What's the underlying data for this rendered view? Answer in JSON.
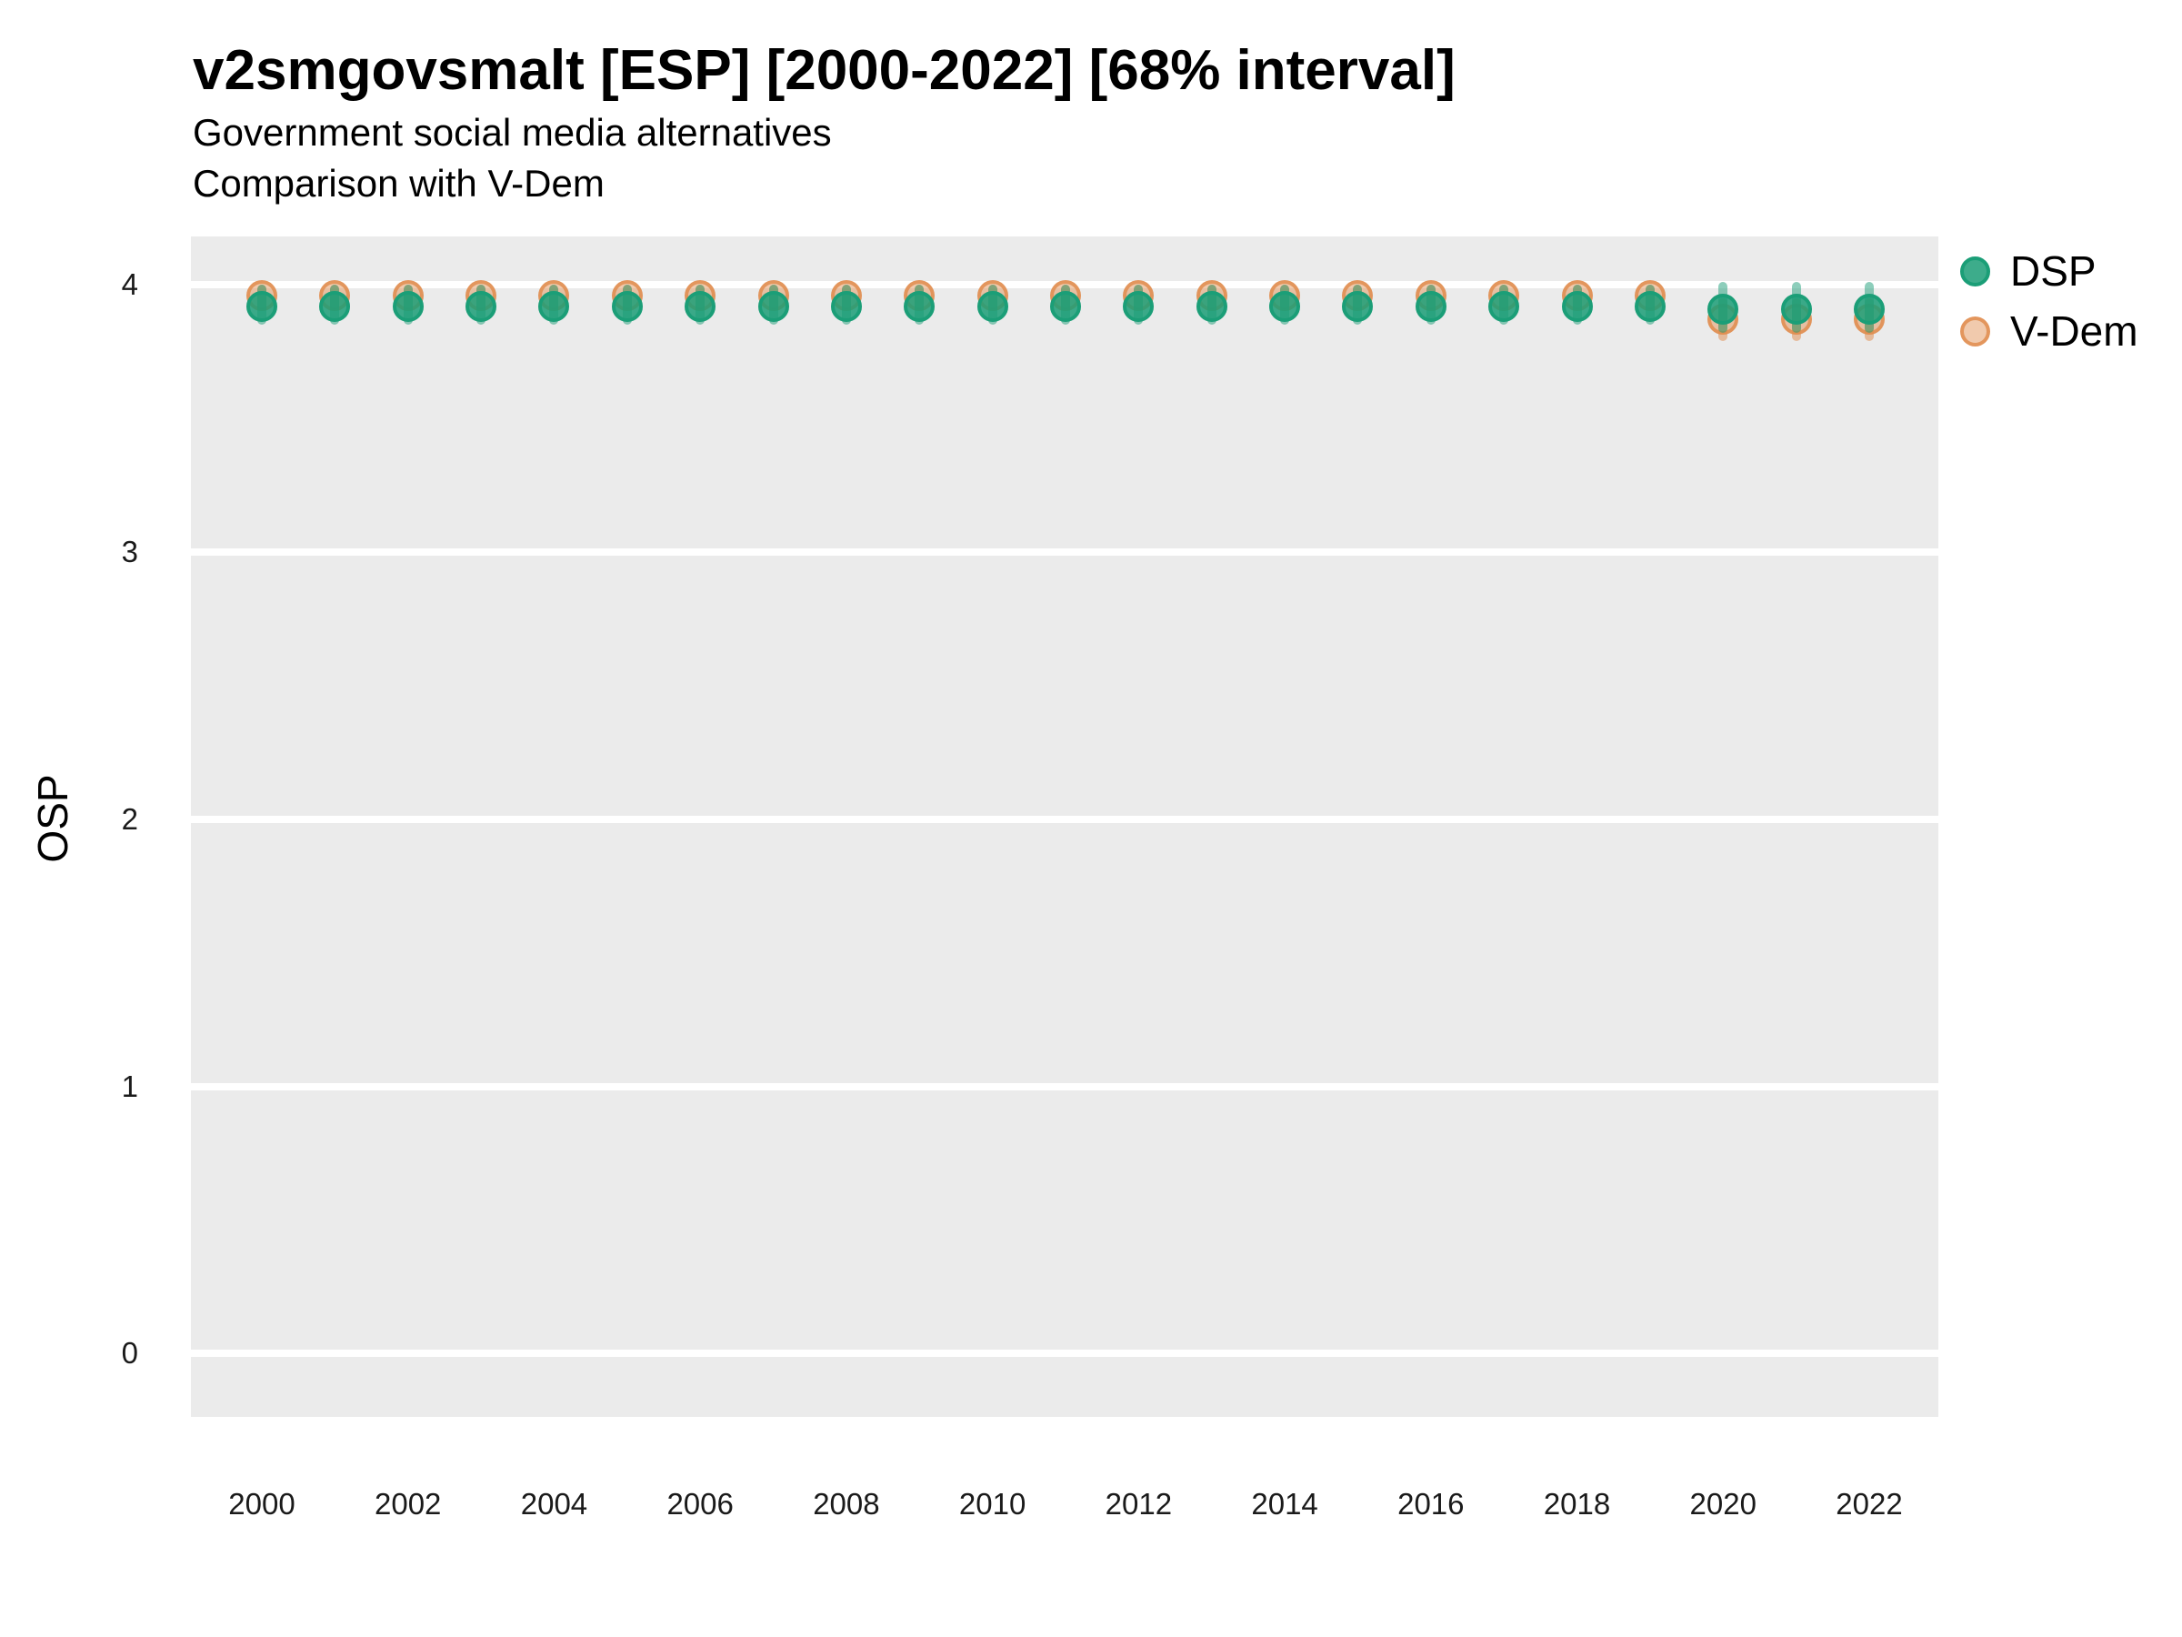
{
  "header": {
    "title": "v2smgovsmalt [ESP] [2000-2022] [68% interval]",
    "subtitle": "Government social media alternatives",
    "subtitle2": "Comparison with V-Dem"
  },
  "axes": {
    "y": {
      "label": "OSP",
      "ticks": [
        4,
        3,
        2,
        1,
        0
      ]
    },
    "x": {
      "ticks": [
        2000,
        2002,
        2004,
        2006,
        2008,
        2010,
        2012,
        2014,
        2016,
        2018,
        2020,
        2022
      ]
    }
  },
  "legend": {
    "items": [
      {
        "label": "DSP",
        "color": "#1B9E77"
      },
      {
        "label": "V-Dem",
        "color": "#E08A4A"
      }
    ]
  },
  "colors": {
    "dsp_green": "#1B9E77",
    "vdem_orange": "#E08A4A",
    "panel_background": "#EBEBEB",
    "gridline": "#FFFFFF"
  },
  "chart_data": {
    "type": "scatter",
    "title": "v2smgovsmalt [ESP] [2000-2022] [68% interval]",
    "subtitle": "Government social media alternatives",
    "comparison_note": "Comparison with V-Dem",
    "xlabel": "",
    "ylabel": "OSP",
    "interval": "68%",
    "grid": "horizontal-major-only",
    "legend_position": "right-top",
    "ylim": [
      -0.24,
      4.18
    ],
    "xlim": [
      1999.0,
      2023.0
    ],
    "y_ticks": [
      0,
      1,
      2,
      3,
      4
    ],
    "x_ticks": [
      2000,
      2002,
      2004,
      2006,
      2008,
      2010,
      2012,
      2014,
      2016,
      2018,
      2020,
      2022
    ],
    "x": [
      2000,
      2001,
      2002,
      2003,
      2004,
      2005,
      2006,
      2007,
      2008,
      2009,
      2010,
      2011,
      2012,
      2013,
      2014,
      2015,
      2016,
      2017,
      2018,
      2019,
      2020,
      2021,
      2022
    ],
    "series": [
      {
        "name": "V-Dem",
        "color": "#E08A4A",
        "values": [
          3.96,
          3.96,
          3.96,
          3.96,
          3.96,
          3.96,
          3.96,
          3.96,
          3.96,
          3.96,
          3.96,
          3.96,
          3.96,
          3.96,
          3.96,
          3.96,
          3.96,
          3.96,
          3.96,
          3.96,
          3.87,
          3.87,
          3.87
        ],
        "lower": [
          3.91,
          3.91,
          3.91,
          3.91,
          3.91,
          3.91,
          3.91,
          3.91,
          3.91,
          3.91,
          3.91,
          3.91,
          3.91,
          3.91,
          3.91,
          3.91,
          3.91,
          3.91,
          3.91,
          3.91,
          3.79,
          3.79,
          3.79
        ],
        "upper": [
          4.0,
          4.0,
          4.0,
          4.0,
          4.0,
          4.0,
          4.0,
          4.0,
          4.0,
          4.0,
          4.0,
          4.0,
          4.0,
          4.0,
          4.0,
          4.0,
          4.0,
          4.0,
          4.0,
          4.0,
          3.95,
          3.95,
          3.95
        ]
      },
      {
        "name": "DSP",
        "color": "#1B9E77",
        "values": [
          3.92,
          3.92,
          3.92,
          3.92,
          3.92,
          3.92,
          3.92,
          3.92,
          3.92,
          3.92,
          3.92,
          3.92,
          3.92,
          3.92,
          3.92,
          3.92,
          3.92,
          3.92,
          3.92,
          3.92,
          3.91,
          3.91,
          3.91
        ],
        "lower": [
          3.85,
          3.85,
          3.85,
          3.85,
          3.85,
          3.85,
          3.85,
          3.85,
          3.85,
          3.85,
          3.85,
          3.85,
          3.85,
          3.85,
          3.85,
          3.85,
          3.85,
          3.85,
          3.85,
          3.85,
          3.82,
          3.82,
          3.82
        ],
        "upper": [
          4.0,
          4.0,
          4.0,
          4.0,
          4.0,
          4.0,
          4.0,
          4.0,
          4.0,
          4.0,
          4.0,
          4.0,
          4.0,
          4.0,
          4.0,
          4.0,
          4.0,
          4.0,
          4.0,
          4.0,
          4.01,
          4.01,
          4.01
        ]
      }
    ]
  }
}
